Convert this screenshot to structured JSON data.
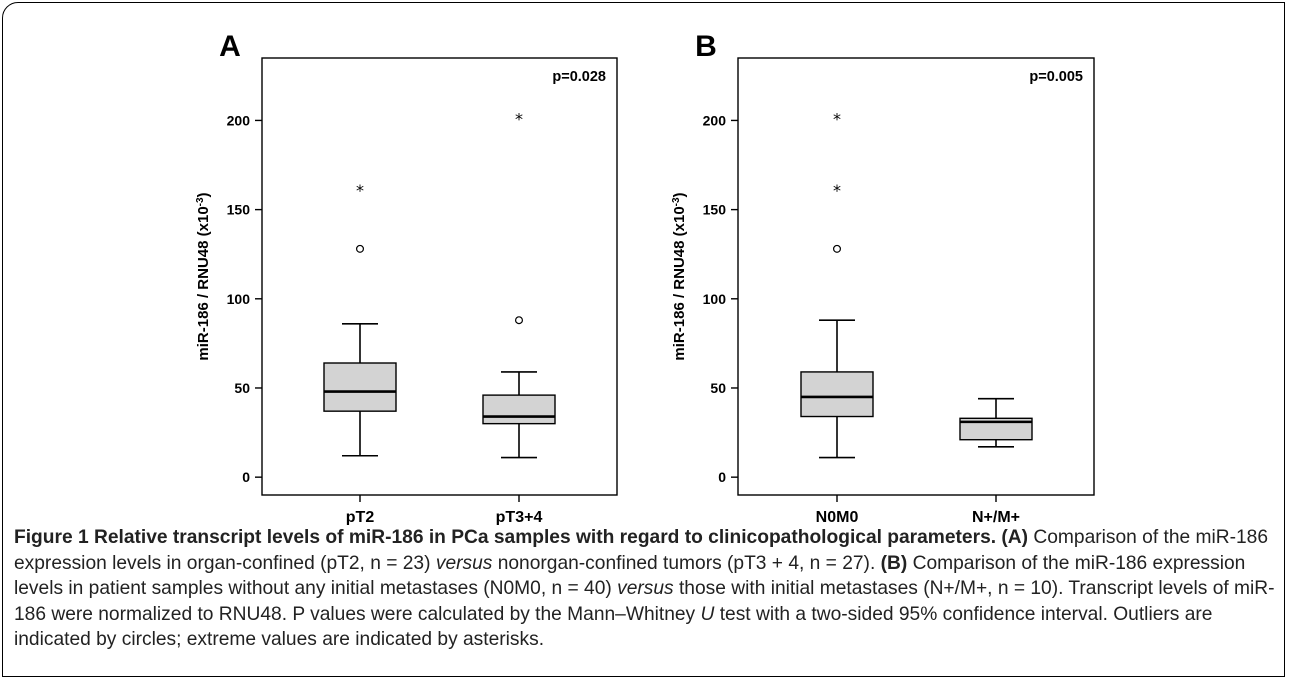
{
  "chart_data": [
    {
      "type": "box",
      "panel_label": "A",
      "ylabel_parts": [
        "miR-186 / RNU48 (x10",
        "-3",
        ")"
      ],
      "p_value": "p=0.028",
      "categories": [
        "pT2",
        "pT3+4"
      ],
      "yticks": [
        0,
        50,
        100,
        150,
        200
      ],
      "ylim": [
        -10,
        235
      ],
      "boxes": [
        {
          "category": "pT2",
          "whisker_low": 12,
          "q1": 37,
          "median": 48,
          "q3": 64,
          "whisker_high": 86,
          "outliers": [
            128
          ],
          "extremes": [
            161
          ]
        },
        {
          "category": "pT3+4",
          "whisker_low": 11,
          "q1": 30,
          "median": 34,
          "q3": 46,
          "whisker_high": 59,
          "outliers": [
            88
          ],
          "extremes": [
            201
          ]
        }
      ]
    },
    {
      "type": "box",
      "panel_label": "B",
      "ylabel_parts": [
        "miR-186 / RNU48 (x10",
        "-3",
        ")"
      ],
      "p_value": "p=0.005",
      "categories": [
        "N0M0",
        "N+/M+"
      ],
      "yticks": [
        0,
        50,
        100,
        150,
        200
      ],
      "ylim": [
        -10,
        235
      ],
      "boxes": [
        {
          "category": "N0M0",
          "whisker_low": 11,
          "q1": 34,
          "median": 45,
          "q3": 59,
          "whisker_high": 88,
          "outliers": [
            128
          ],
          "extremes": [
            161,
            201
          ]
        },
        {
          "category": "N+/M+",
          "whisker_low": 17,
          "q1": 21,
          "median": 31,
          "q3": 33,
          "whisker_high": 44,
          "outliers": [],
          "extremes": []
        }
      ]
    }
  ],
  "colors": {
    "box_fill": "#d3d3d3",
    "stroke": "#000000",
    "caption_text": "#222222"
  },
  "caption": {
    "title": "Figure 1 Relative transcript levels of miR-186 in PCa samples with regard to clinicopathological parameters.",
    "label_a": "(A)",
    "text_a1": "Comparison of the miR-186 expression levels in organ-confined (pT2, n = 23)",
    "versus_1": "versus",
    "text_a2": "nonorgan-confined tumors (pT3 + 4, n = 27).",
    "label_b": "(B)",
    "text_b1": "Comparison of the miR-186 expression levels in patient samples without any initial metastases (N0M0, n = 40)",
    "versus_2": "versus",
    "text_b2": "those with initial metastases (N+/M+, n = 10). Transcript levels of miR-186 were normalized to RNU48. P values were calculated by the Mann–Whitney",
    "u_symbol": "U",
    "text_c": "test with a two-sided 95% confidence interval. Outliers are indicated by circles; extreme values are indicated by asterisks."
  }
}
